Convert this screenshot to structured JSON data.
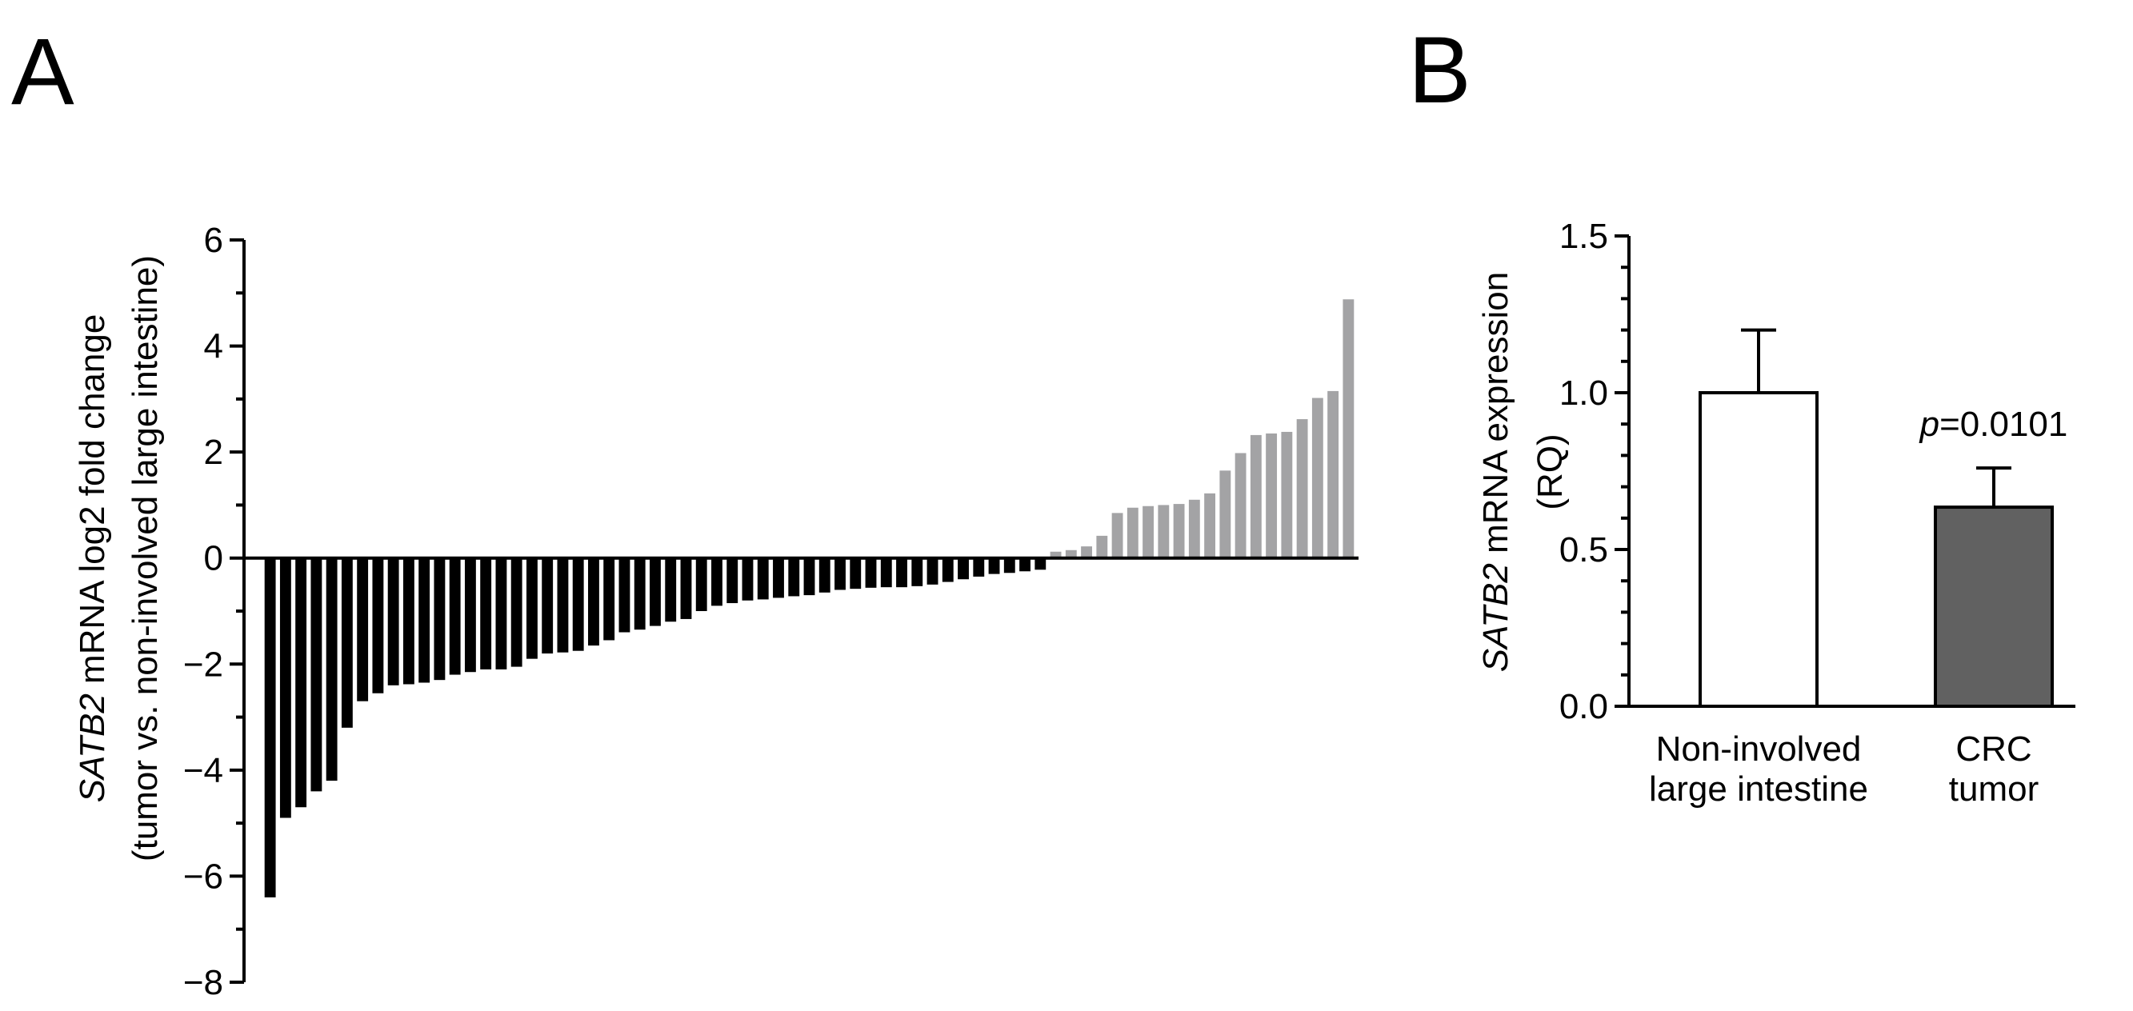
{
  "panels": [
    {
      "id": "A",
      "label": "A"
    },
    {
      "id": "B",
      "label": "B"
    }
  ],
  "chart_data": [
    {
      "panel": "A",
      "type": "bar",
      "ylabel_italic": "SATB2",
      "ylabel_rest": " mRNA log2 fold change",
      "ylabel_line2": "(tumor vs. non-involved large intestine)",
      "xlabel": "",
      "ylim": [
        -8,
        6
      ],
      "yticks": [
        6,
        4,
        2,
        0,
        -2,
        -4,
        -6,
        -8
      ],
      "ytick_labels": [
        "6",
        "4",
        "2",
        "0",
        "−2",
        "−4",
        "−6",
        "−8"
      ],
      "minor_ticks": true,
      "grid": false,
      "values": [
        -6.4,
        -4.9,
        -4.7,
        -4.4,
        -4.2,
        -3.2,
        -2.7,
        -2.55,
        -2.4,
        -2.38,
        -2.35,
        -2.3,
        -2.2,
        -2.15,
        -2.1,
        -2.1,
        -2.05,
        -1.9,
        -1.8,
        -1.78,
        -1.75,
        -1.65,
        -1.55,
        -1.4,
        -1.35,
        -1.28,
        -1.2,
        -1.15,
        -1.0,
        -0.9,
        -0.85,
        -0.8,
        -0.78,
        -0.75,
        -0.72,
        -0.7,
        -0.65,
        -0.6,
        -0.58,
        -0.56,
        -0.55,
        -0.55,
        -0.53,
        -0.5,
        -0.45,
        -0.4,
        -0.35,
        -0.3,
        -0.28,
        -0.25,
        -0.22,
        0.12,
        0.15,
        0.22,
        0.42,
        0.85,
        0.95,
        0.98,
        1.0,
        1.02,
        1.1,
        1.22,
        1.65,
        1.98,
        2.32,
        2.35,
        2.38,
        2.62,
        3.02,
        3.15,
        4.88
      ],
      "colors": {
        "negative": "#000000",
        "positive": "#a3a3a5"
      }
    },
    {
      "panel": "B",
      "type": "bar",
      "ylabel_italic": "SATB2",
      "ylabel_rest": " mRNA expression",
      "ylabel_line2": "(RQ)",
      "ylim": [
        0,
        1.5
      ],
      "yticks": [
        0.0,
        0.5,
        1.0,
        1.5
      ],
      "ytick_labels": [
        "0.0",
        "0.5",
        "1.0",
        "1.5"
      ],
      "minor_ticks": true,
      "grid": false,
      "categories": [
        {
          "line1": "Non-involved",
          "line2": "large intestine"
        },
        {
          "line1": "CRC",
          "line2": "tumor"
        }
      ],
      "values": [
        1.0,
        0.635
      ],
      "error_upper": [
        1.2,
        0.76
      ],
      "colors": [
        "#ffffff",
        "#616161"
      ],
      "annotation": {
        "italic": "p",
        "text": "=0.0101",
        "over_category": 1
      }
    }
  ]
}
